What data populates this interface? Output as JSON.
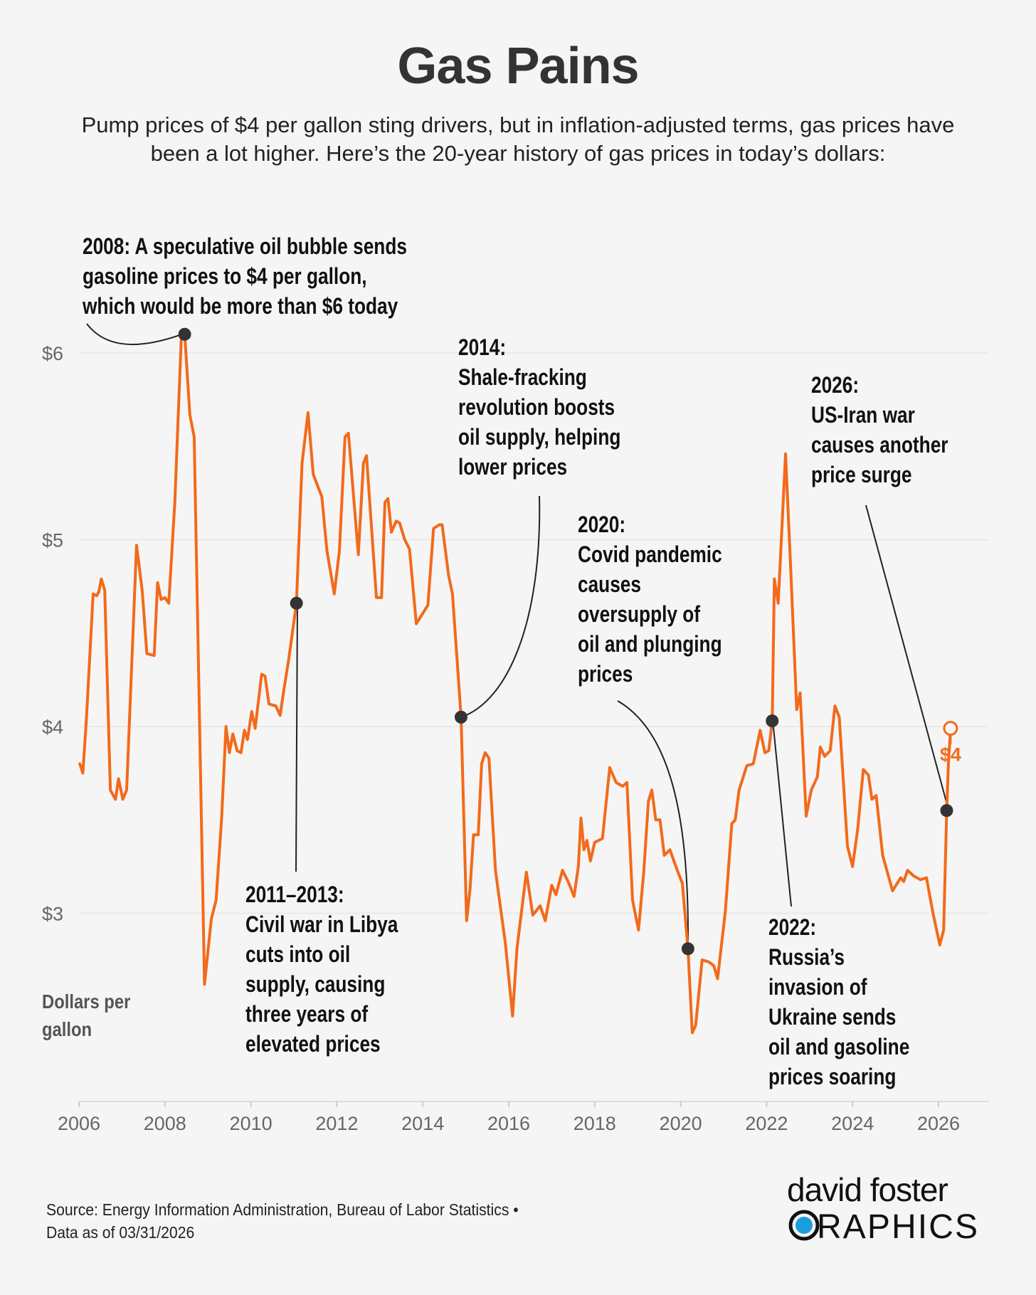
{
  "title": "Gas Pains",
  "subtitle": [
    "Pump prices of $4 per gallon sting drivers, but in inflation-adjusted terms, gas prices have",
    "been a lot higher. Here’s the 20-year history of gas prices in today’s dollars:"
  ],
  "colors": {
    "line": "#f26a1b",
    "dot": "#333333",
    "grid": "#e6e6e6",
    "background": "#f5f5f5",
    "logo_accent": "#1a9ee0"
  },
  "annotations": {
    "a2008": [
      "2008: A speculative oil bubble sends",
      "gasoline prices to $4 per gallon,",
      "which would be more than $6 today"
    ],
    "a2011": [
      "2011–2013:",
      "Civil war in Libya",
      "cuts into oil",
      "supply, causing",
      "three years of",
      "elevated prices"
    ],
    "a2014": [
      "2014:",
      "Shale-fracking",
      "revolution boosts",
      "oil supply, helping",
      "lower prices"
    ],
    "a2020": [
      "2020:",
      "Covid pandemic",
      "causes",
      "oversupply of",
      "oil and plunging",
      "prices"
    ],
    "a2022": [
      "2022:",
      "Russia’s",
      "invasion of",
      "Ukraine sends",
      "oil and gasoline",
      "prices soaring"
    ],
    "a2026": [
      "2026:",
      "US-Iran war",
      "causes another",
      "price surge"
    ]
  },
  "end_label": "$4",
  "source": [
    "Source: Energy Information Administration, Bureau of Labor Statistics •",
    "Data as of 03/31/2026"
  ],
  "logo": {
    "line1": "david foster",
    "line2": "GRAPHICS"
  },
  "chart_data": {
    "type": "line",
    "title": "Gas Pains",
    "xlabel": "",
    "ylabel": "Dollars per gallon",
    "xlim": [
      2006,
      2027.2
    ],
    "ylim": [
      2.1,
      6.3
    ],
    "grid": true,
    "x_ticks": [
      2006,
      2008,
      2010,
      2012,
      2014,
      2016,
      2018,
      2020,
      2022,
      2024,
      2026
    ],
    "x_tick_labels": [
      "2006",
      "2008",
      "2010",
      "2012",
      "2014",
      "2016",
      "2018",
      "2020",
      "2022",
      "2024",
      "2026"
    ],
    "y_ticks": [
      3,
      4,
      5,
      6
    ],
    "y_tick_labels": [
      "$3",
      "$4",
      "$5",
      "$6"
    ],
    "series": [
      {
        "name": "Gas price (inflation-adjusted)",
        "x": [
          2006.02,
          2006.09,
          2006.17,
          2006.33,
          2006.41,
          2006.46,
          2006.52,
          2006.6,
          2006.73,
          2006.85,
          2006.92,
          2007.02,
          2007.11,
          2007.34,
          2007.47,
          2007.58,
          2007.75,
          2007.83,
          2007.91,
          2008.0,
          2008.09,
          2008.23,
          2008.38,
          2008.46,
          2008.58,
          2008.68,
          2008.92,
          2009.08,
          2009.19,
          2009.32,
          2009.42,
          2009.5,
          2009.58,
          2009.68,
          2009.77,
          2009.85,
          2009.92,
          2010.02,
          2010.1,
          2010.25,
          2010.33,
          2010.42,
          2010.58,
          2010.68,
          2010.77,
          2010.88,
          2011.06,
          2011.19,
          2011.33,
          2011.45,
          2011.65,
          2011.77,
          2011.94,
          2012.06,
          2012.19,
          2012.27,
          2012.5,
          2012.62,
          2012.69,
          2012.92,
          2013.04,
          2013.12,
          2013.19,
          2013.27,
          2013.38,
          2013.46,
          2013.58,
          2013.69,
          2013.85,
          2014.12,
          2014.25,
          2014.38,
          2014.45,
          2014.6,
          2014.69,
          2014.89,
          2015.02,
          2015.1,
          2015.18,
          2015.29,
          2015.37,
          2015.45,
          2015.54,
          2015.69,
          2015.92,
          2016.09,
          2016.19,
          2016.41,
          2016.56,
          2016.73,
          2016.85,
          2017.0,
          2017.1,
          2017.25,
          2017.38,
          2017.52,
          2017.62,
          2017.68,
          2017.75,
          2017.82,
          2017.9,
          2018.0,
          2018.18,
          2018.35,
          2018.5,
          2018.65,
          2018.75,
          2018.88,
          2019.02,
          2019.14,
          2019.25,
          2019.33,
          2019.42,
          2019.52,
          2019.62,
          2019.75,
          2019.92,
          2020.04,
          2020.17,
          2020.27,
          2020.35,
          2020.5,
          2020.65,
          2020.77,
          2020.86,
          2021.04,
          2021.19,
          2021.27,
          2021.36,
          2021.54,
          2021.69,
          2021.85,
          2021.96,
          2022.05,
          2022.13,
          2022.18,
          2022.27,
          2022.35,
          2022.44,
          2022.56,
          2022.7,
          2022.78,
          2022.92,
          2023.04,
          2023.18,
          2023.25,
          2023.35,
          2023.48,
          2023.59,
          2023.69,
          2023.88,
          2024.0,
          2024.12,
          2024.25,
          2024.37,
          2024.45,
          2024.55,
          2024.7,
          2024.93,
          2025.12,
          2025.19,
          2025.28,
          2025.42,
          2025.58,
          2025.72,
          2025.8,
          2025.88,
          2026.03,
          2026.12,
          2026.19,
          2026.23,
          2026.28
        ],
        "y": [
          3.8,
          3.75,
          4.03,
          4.71,
          4.7,
          4.72,
          4.79,
          4.73,
          3.66,
          3.61,
          3.72,
          3.61,
          3.66,
          4.97,
          4.73,
          4.39,
          4.38,
          4.77,
          4.68,
          4.69,
          4.66,
          5.2,
          6.08,
          6.1,
          5.67,
          5.55,
          2.62,
          2.97,
          3.07,
          3.51,
          4.0,
          3.86,
          3.96,
          3.87,
          3.86,
          3.98,
          3.93,
          4.08,
          3.99,
          4.28,
          4.27,
          4.12,
          4.11,
          4.06,
          4.2,
          4.36,
          4.66,
          5.41,
          5.68,
          5.35,
          5.23,
          4.94,
          4.71,
          4.94,
          5.55,
          5.57,
          4.92,
          5.41,
          5.45,
          4.69,
          4.69,
          5.2,
          5.22,
          5.04,
          5.1,
          5.09,
          5.0,
          4.95,
          4.55,
          4.65,
          5.06,
          5.08,
          5.08,
          4.81,
          4.71,
          4.05,
          2.96,
          3.13,
          3.42,
          3.42,
          3.8,
          3.86,
          3.83,
          3.23,
          2.84,
          2.45,
          2.81,
          3.22,
          2.99,
          3.04,
          2.96,
          3.15,
          3.1,
          3.23,
          3.17,
          3.09,
          3.25,
          3.51,
          3.34,
          3.39,
          3.28,
          3.38,
          3.4,
          3.78,
          3.7,
          3.68,
          3.7,
          3.07,
          2.91,
          3.22,
          3.6,
          3.66,
          3.5,
          3.5,
          3.31,
          3.34,
          3.23,
          3.16,
          2.81,
          2.36,
          2.4,
          2.75,
          2.74,
          2.72,
          2.65,
          3.01,
          3.48,
          3.5,
          3.66,
          3.79,
          3.8,
          3.98,
          3.86,
          3.87,
          4.03,
          4.79,
          4.66,
          5.03,
          5.46,
          4.85,
          4.09,
          4.18,
          3.52,
          3.66,
          3.73,
          3.89,
          3.84,
          3.87,
          4.11,
          4.05,
          3.36,
          3.25,
          3.45,
          3.77,
          3.74,
          3.61,
          3.63,
          3.31,
          3.12,
          3.19,
          3.17,
          3.23,
          3.2,
          3.18,
          3.19,
          3.09,
          2.99,
          2.83,
          2.91,
          3.55,
          3.8,
          3.99
        ]
      }
    ],
    "highlight_points": [
      {
        "x": 2008.46,
        "y": 6.1,
        "label": "2008"
      },
      {
        "x": 2011.06,
        "y": 4.66,
        "label": "2011–2013"
      },
      {
        "x": 2014.89,
        "y": 4.05,
        "label": "2014"
      },
      {
        "x": 2020.17,
        "y": 2.81,
        "label": "2020"
      },
      {
        "x": 2022.13,
        "y": 4.03,
        "label": "2022"
      },
      {
        "x": 2026.19,
        "y": 3.55,
        "label": "2026"
      }
    ],
    "end_point": {
      "x": 2026.28,
      "y": 3.99,
      "label": "$4"
    }
  }
}
